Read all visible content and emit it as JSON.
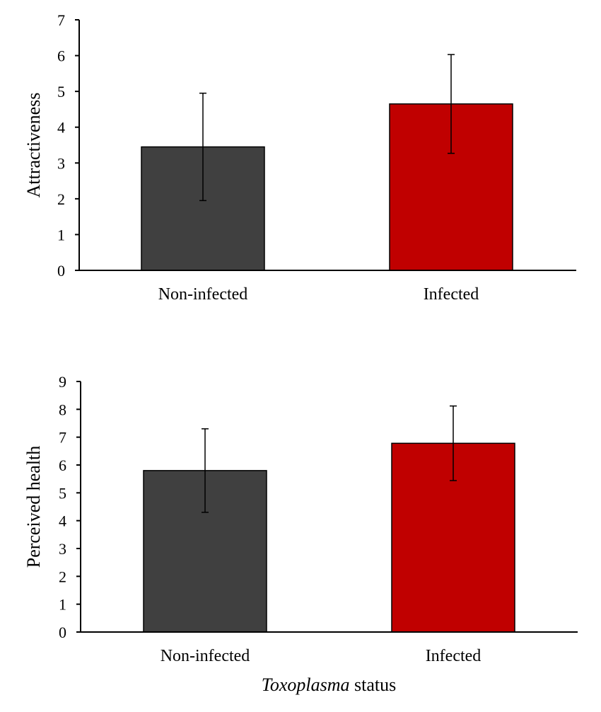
{
  "chart_data": [
    {
      "type": "bar",
      "categories": [
        "Non-infected",
        "Infected"
      ],
      "values": [
        3.45,
        4.65
      ],
      "errors": [
        1.5,
        1.38
      ],
      "colors": [
        "#404040",
        "#c00000"
      ],
      "ylabel": "Attractiveness",
      "ylim": [
        0,
        7
      ],
      "yticks": [
        "0",
        "1",
        "2",
        "3",
        "4",
        "5",
        "6",
        "7"
      ],
      "grid": false
    },
    {
      "type": "bar",
      "categories": [
        "Non-infected",
        "Infected"
      ],
      "values": [
        5.8,
        6.78
      ],
      "errors": [
        1.5,
        1.34
      ],
      "colors": [
        "#404040",
        "#c00000"
      ],
      "ylabel": "Perceived health",
      "ylim": [
        0,
        9
      ],
      "yticks": [
        "0",
        "1",
        "2",
        "3",
        "4",
        "5",
        "6",
        "7",
        "8",
        "9"
      ],
      "grid": false,
      "xlabel": {
        "italic": "Toxoplasma",
        "rest": " status"
      }
    }
  ]
}
